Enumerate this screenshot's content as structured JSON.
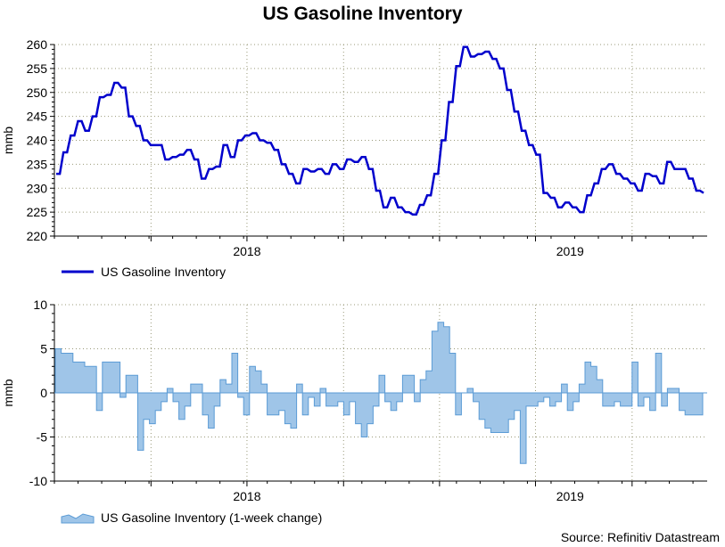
{
  "title": "US Gasoline Inventory",
  "source": "Source: Refinitiv Datastream",
  "colors": {
    "line": "#0000cc",
    "area_fill": "#9fc5e8",
    "area_stroke": "#5b9bd5",
    "grid": "#9a9a7a",
    "axis": "#000000"
  },
  "chart_data": [
    {
      "type": "line",
      "title": "US Gasoline Inventory",
      "ylabel": "mmb",
      "xlabel": "",
      "ylim": [
        220,
        260
      ],
      "yticks": [
        220,
        225,
        230,
        235,
        240,
        245,
        250,
        255,
        260
      ],
      "xticks": [
        "2018",
        "2019"
      ],
      "grid": true,
      "legend": "bottom-left",
      "series": [
        {
          "name": "US Gasoline Inventory",
          "values": [
            233,
            233,
            237.5,
            237.5,
            241,
            241,
            244,
            244,
            242,
            242,
            245,
            245,
            249,
            249,
            249.5,
            249.5,
            252,
            252,
            251,
            251,
            245,
            245,
            243,
            243,
            240,
            240,
            239,
            239,
            239,
            239,
            236,
            236,
            236.5,
            236.5,
            237,
            237,
            238,
            238,
            236,
            236,
            232,
            232,
            234,
            234,
            234.5,
            234.5,
            239,
            239,
            236.5,
            236.5,
            240,
            240,
            241,
            241,
            241.5,
            241.5,
            240,
            240,
            239.5,
            239.5,
            238,
            238,
            235,
            235,
            233,
            233,
            231,
            231,
            234,
            234,
            233.5,
            233.5,
            234,
            234,
            233,
            233,
            235,
            235,
            234,
            234,
            236,
            236,
            235.5,
            235.5,
            236.5,
            236.5,
            234,
            234,
            229.5,
            229.5,
            226,
            226,
            228,
            228,
            226,
            226,
            225,
            225,
            224.5,
            224.5,
            226.5,
            226.5,
            228.5,
            228.5,
            233,
            233,
            240,
            240,
            248,
            248,
            255.5,
            255.5,
            259.5,
            259.5,
            257.5,
            257.5,
            258,
            258,
            258.5,
            258.5,
            257,
            257,
            255,
            255,
            250.5,
            250.5,
            246,
            246,
            242,
            242,
            239,
            239,
            237,
            237,
            229,
            229,
            228,
            228,
            226,
            226,
            227,
            227,
            226,
            226,
            225,
            225,
            228.5,
            228.5,
            231,
            231,
            234,
            234,
            235,
            235,
            233,
            233,
            232,
            232,
            231,
            231,
            229.5,
            229.5,
            233,
            233,
            232.5,
            232.5,
            231,
            231,
            235.5,
            235.5,
            234,
            234,
            234,
            234,
            232,
            232,
            229.5,
            229.5,
            229
          ]
        }
      ]
    },
    {
      "type": "area",
      "ylabel": "mmb",
      "xlabel": "",
      "ylim": [
        -10,
        10
      ],
      "yticks": [
        -10,
        -5,
        0,
        5,
        10
      ],
      "xticks": [
        "2018",
        "2019"
      ],
      "grid": true,
      "legend": "bottom-left",
      "series": [
        {
          "name": "US Gasoline Inventory (1-week change)",
          "values": [
            5,
            4.5,
            4.5,
            3.5,
            3.5,
            3,
            3,
            -2,
            3.5,
            3.5,
            3.5,
            -0.5,
            2,
            2,
            -6.5,
            -3,
            -3.5,
            -2,
            -1,
            0.5,
            -1,
            -3,
            -1.5,
            1,
            1,
            -2.5,
            -4,
            -1.5,
            1.5,
            1,
            4.5,
            -0.5,
            -2.5,
            3,
            2.5,
            1,
            -2.5,
            -2.5,
            -2,
            -3.5,
            -4,
            1,
            -2.5,
            -0.5,
            -1.5,
            0.5,
            -1.5,
            -1.5,
            -1,
            -2.5,
            -1,
            -3.5,
            -5,
            -3.5,
            -1.5,
            2,
            -1,
            -2,
            -1,
            2,
            2,
            -1,
            1.5,
            2.5,
            7,
            8,
            7.5,
            4.5,
            -2.5,
            0,
            0.5,
            -1,
            -3,
            -4,
            -4.5,
            -4.5,
            -4.5,
            -3,
            -2,
            -8,
            -1.5,
            -1.5,
            -1,
            -0.5,
            -1.5,
            -1,
            1,
            -2,
            -1,
            1,
            3.5,
            3,
            1.5,
            -1.5,
            -1.5,
            -1,
            -1.5,
            -1.5,
            3.5,
            -1.5,
            -0.5,
            -2,
            4.5,
            -1.5,
            0.5,
            0.5,
            -2,
            -2.5,
            -2.5,
            -2.5
          ]
        }
      ]
    }
  ]
}
